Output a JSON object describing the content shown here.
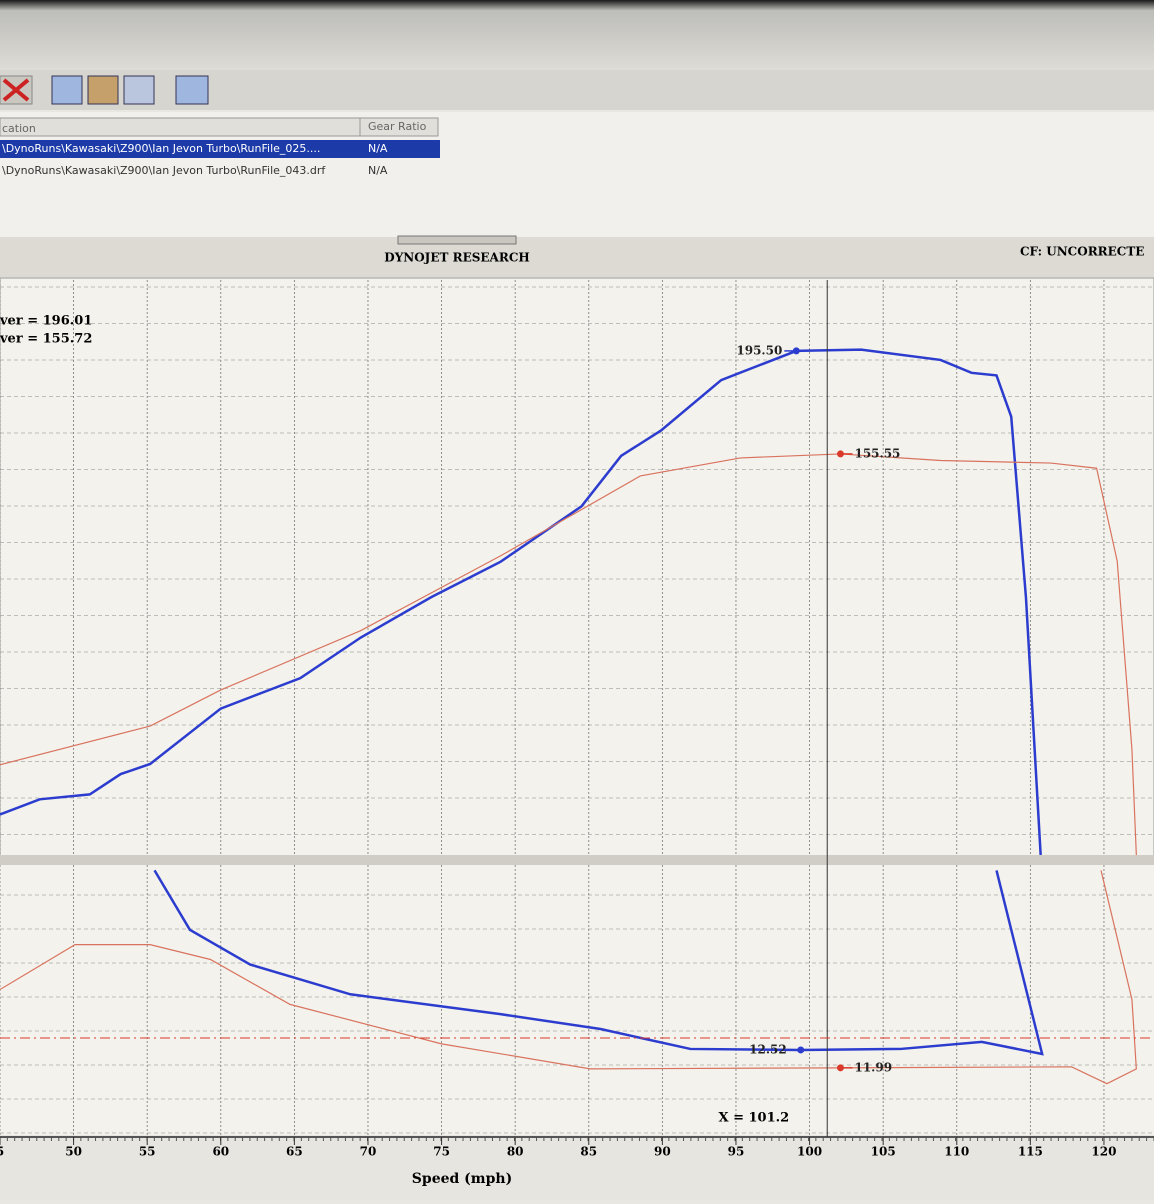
{
  "file_list": {
    "columns": [
      "cation",
      "Gear Ratio"
    ],
    "rows": [
      [
        "\\DynoRuns\\Kawasaki\\Z900\\Ian Jevon Turbo\\RunFile_025....",
        "N/A"
      ],
      [
        "\\DynoRuns\\Kawasaki\\Z900\\Ian Jevon Turbo\\RunFile_043.drf",
        "N/A"
      ]
    ]
  },
  "chart_data": [
    {
      "type": "line",
      "title": "DYNOJET RESEARCH",
      "subtitle": "CF: UNCORRECTE",
      "summary": [
        {
          "value": 196.01,
          "label": "ver = 196.01"
        },
        {
          "value": 155.72,
          "label": "ver = 155.72"
        }
      ],
      "xlim": [
        45,
        123.4
      ],
      "ylim": [
        0,
        223
      ],
      "series": [
        {
          "color": "#2b3ccf",
          "x": [
            45,
            47.7,
            51.1,
            53.2,
            55.2,
            60,
            65.4,
            69.5,
            74.3,
            79,
            84.5,
            87.2,
            89.9,
            94,
            99.1,
            103.5,
            108.9,
            111,
            112.7,
            113.7,
            114.7,
            115.7
          ],
          "values": [
            15.7,
            21.6,
            23.5,
            31.4,
            35.3,
            56.8,
            68.6,
            84.3,
            100,
            113.7,
            135.2,
            154.8,
            164.6,
            184.2,
            195.5,
            196,
            192,
            187,
            186,
            170,
            100,
            0
          ]
        },
        {
          "color": "#d9735f",
          "x": [
            45,
            55.2,
            60,
            69.5,
            79,
            88.5,
            95.3,
            102.1,
            108.9,
            116.4,
            119.5,
            120.9,
            121.9,
            122.2
          ],
          "values": [
            35,
            50,
            64,
            87,
            116,
            147,
            154,
            155.55,
            153,
            152,
            150,
            114,
            41,
            0
          ]
        }
      ],
      "markers": [
        {
          "x": 99.1,
          "value": 195.5,
          "label": "195.50",
          "color": "#2b3ccf"
        },
        {
          "x": 102.1,
          "value": 155.55,
          "label": "155.55",
          "color": "#d93a2a"
        }
      ]
    },
    {
      "type": "line",
      "xlabel": "Speed (mph)",
      "xlim": [
        45,
        123.4
      ],
      "ylim": [
        10,
        18
      ],
      "xticks": [
        {
          "value": 45,
          "label": "5"
        },
        50,
        55,
        60,
        65,
        70,
        75,
        80,
        85,
        90,
        95,
        100,
        105,
        110,
        115,
        120
      ],
      "cursor": {
        "value": 101.2,
        "label": "X = 101.2"
      },
      "series": [
        {
          "color": "#2b3ccf",
          "x": [
            55.5,
            57.9,
            62,
            68.8,
            79,
            85.8,
            91.9,
            99.4,
            106.2,
            111.7,
            115.8,
            112.7
          ],
          "values": [
            17.84,
            16.08,
            15.05,
            14.17,
            13.58,
            13.14,
            12.55,
            12.52,
            12.55,
            12.76,
            12.4,
            17.84
          ]
        },
        {
          "color": "#d9735f",
          "x": [
            45,
            50.1,
            55.2,
            59.3,
            64.7,
            75,
            85.1,
            102.1,
            117.8,
            120.2,
            122.2,
            121.9,
            119.8
          ],
          "values": [
            14.31,
            15.64,
            15.64,
            15.2,
            13.87,
            12.7,
            11.96,
            11.99,
            12.02,
            11.52,
            11.96,
            14.02,
            17.84
          ]
        }
      ],
      "markers": [
        {
          "x": 99.4,
          "value": 12.52,
          "label": "12.52",
          "color": "#2b3ccf"
        },
        {
          "x": 102.1,
          "value": 11.99,
          "label": "11.99",
          "color": "#d93a2a"
        }
      ]
    }
  ]
}
